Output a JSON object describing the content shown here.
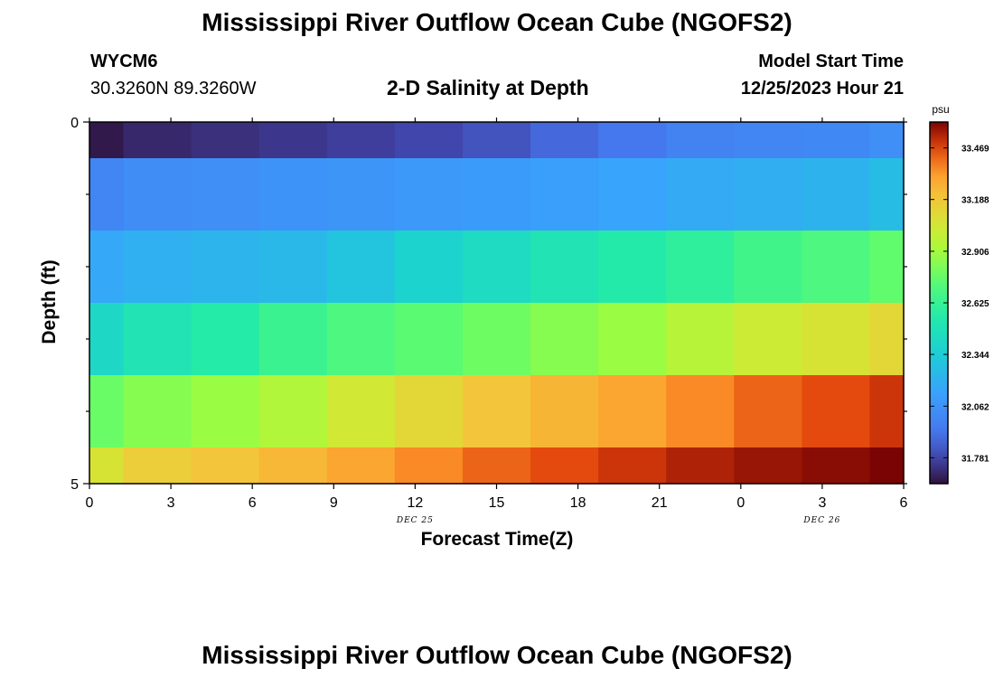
{
  "chart_data": {
    "type": "heatmap",
    "title": "Mississippi River Outflow Ocean Cube (NGOFS2)",
    "subtitle": "2-D Salinity at Depth",
    "station": "WYCM6",
    "location": "30.3260N  89.3260W",
    "model_start_label": "Model Start Time",
    "model_start_value": "12/25/2023 Hour 21",
    "xlabel": "Forecast Time(Z)",
    "ylabel": "Depth (ft)",
    "x_tick_labels": [
      "0",
      "3",
      "6",
      "9",
      "12",
      "15",
      "18",
      "21",
      "0",
      "3",
      "6"
    ],
    "x_range": [
      0,
      30
    ],
    "date_labels": [
      {
        "text": "DEC 25",
        "at_hour": 12
      },
      {
        "text": "DEC 26",
        "at_hour": 27
      }
    ],
    "y_tick_labels": [
      "0",
      "5"
    ],
    "ylim": [
      0,
      5
    ],
    "colorbar": {
      "unit": "psu",
      "range": [
        31.64,
        33.61
      ],
      "ticks": [
        "31.781",
        "32.062",
        "32.344",
        "32.625",
        "32.906",
        "33.188",
        "33.469"
      ]
    },
    "layer_depth_edges": [
      0,
      0.5,
      1.5,
      2.5,
      3.5,
      4.5,
      5
    ],
    "time_edges": [
      0,
      1.25,
      3.75,
      6.25,
      8.75,
      11.25,
      13.75,
      16.25,
      18.75,
      21.25,
      23.75,
      26.25,
      28.75,
      30
    ],
    "values": [
      [
        31.66,
        31.7,
        31.72,
        31.74,
        31.76,
        31.78,
        31.82,
        31.88,
        31.93,
        31.98,
        32.0,
        32.01,
        32.04
      ],
      [
        32.0,
        32.03,
        32.04,
        32.06,
        32.07,
        32.09,
        32.1,
        32.12,
        32.14,
        32.17,
        32.19,
        32.21,
        32.26
      ],
      [
        32.16,
        32.2,
        32.22,
        32.24,
        32.3,
        32.38,
        32.44,
        32.5,
        32.55,
        32.6,
        32.66,
        32.7,
        32.76
      ],
      [
        32.42,
        32.5,
        32.56,
        32.64,
        32.7,
        32.74,
        32.79,
        32.84,
        32.88,
        32.96,
        33.02,
        33.06,
        33.12
      ],
      [
        32.78,
        32.84,
        32.88,
        32.94,
        33.04,
        33.12,
        33.2,
        33.25,
        33.3,
        33.36,
        33.42,
        33.46,
        33.5
      ],
      [
        33.06,
        33.16,
        33.2,
        33.24,
        33.3,
        33.36,
        33.42,
        33.46,
        33.5,
        33.54,
        33.57,
        33.59,
        33.61
      ]
    ]
  },
  "footer_title": "Mississippi River Outflow Ocean Cube (NGOFS2)"
}
